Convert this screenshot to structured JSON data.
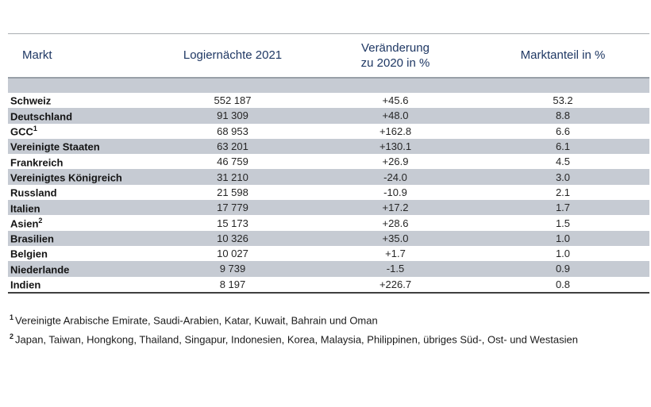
{
  "table": {
    "columns": [
      {
        "label": "Markt"
      },
      {
        "label": "Logiernächte 2021"
      },
      {
        "label": "Veränderung",
        "label2": "zu 2020 in %"
      },
      {
        "label": "Marktanteil in %"
      }
    ],
    "rows": [
      {
        "market": "Schweiz",
        "sup": "",
        "nights": "552 187",
        "change": "+45.6",
        "share": "53.2"
      },
      {
        "market": "Deutschland",
        "sup": "",
        "nights": "91 309",
        "change": "+48.0",
        "share": "8.8"
      },
      {
        "market": "GCC",
        "sup": "1",
        "nights": "68 953",
        "change": "+162.8",
        "share": "6.6"
      },
      {
        "market": "Vereinigte Staaten",
        "sup": "",
        "nights": "63 201",
        "change": "+130.1",
        "share": "6.1"
      },
      {
        "market": "Frankreich",
        "sup": "",
        "nights": "46 759",
        "change": "+26.9",
        "share": "4.5"
      },
      {
        "market": "Vereinigtes Königreich",
        "sup": "",
        "nights": "31 210",
        "change": "-24.0",
        "share": "3.0"
      },
      {
        "market": "Russland",
        "sup": "",
        "nights": "21 598",
        "change": "-10.9",
        "share": "2.1"
      },
      {
        "market": "Italien",
        "sup": "",
        "nights": "17 779",
        "change": "+17.2",
        "share": "1.7"
      },
      {
        "market": "Asien",
        "sup": "2",
        "nights": "15 173",
        "change": "+28.6",
        "share": "1.5"
      },
      {
        "market": "Brasilien",
        "sup": "",
        "nights": "10 326",
        "change": "+35.0",
        "share": "1.0"
      },
      {
        "market": "Belgien",
        "sup": "",
        "nights": "10 027",
        "change": "+1.7",
        "share": "1.0"
      },
      {
        "market": "Niederlande",
        "sup": "",
        "nights": "9 739",
        "change": "-1.5",
        "share": "0.9"
      },
      {
        "market": "Indien",
        "sup": "",
        "nights": "8 197",
        "change": "+226.7",
        "share": "0.8"
      }
    ]
  },
  "footnotes": [
    {
      "sup": "1",
      "text": "Vereinigte Arabische Emirate, Saudi-Arabien, Katar, Kuwait, Bahrain und Oman"
    },
    {
      "sup": "2",
      "text": "Japan, Taiwan, Hongkong, Thailand, Singapur, Indonesien, Korea, Malaysia, Philippinen, übriges Süd-, Ost- und Westasien"
    }
  ],
  "colors": {
    "header_text": "#1f3864",
    "row_stripe": "#c6cbd3",
    "top_border": "#a9adb2",
    "header_underline": "#99a0a8",
    "bottom_border": "#3f3f3f"
  }
}
